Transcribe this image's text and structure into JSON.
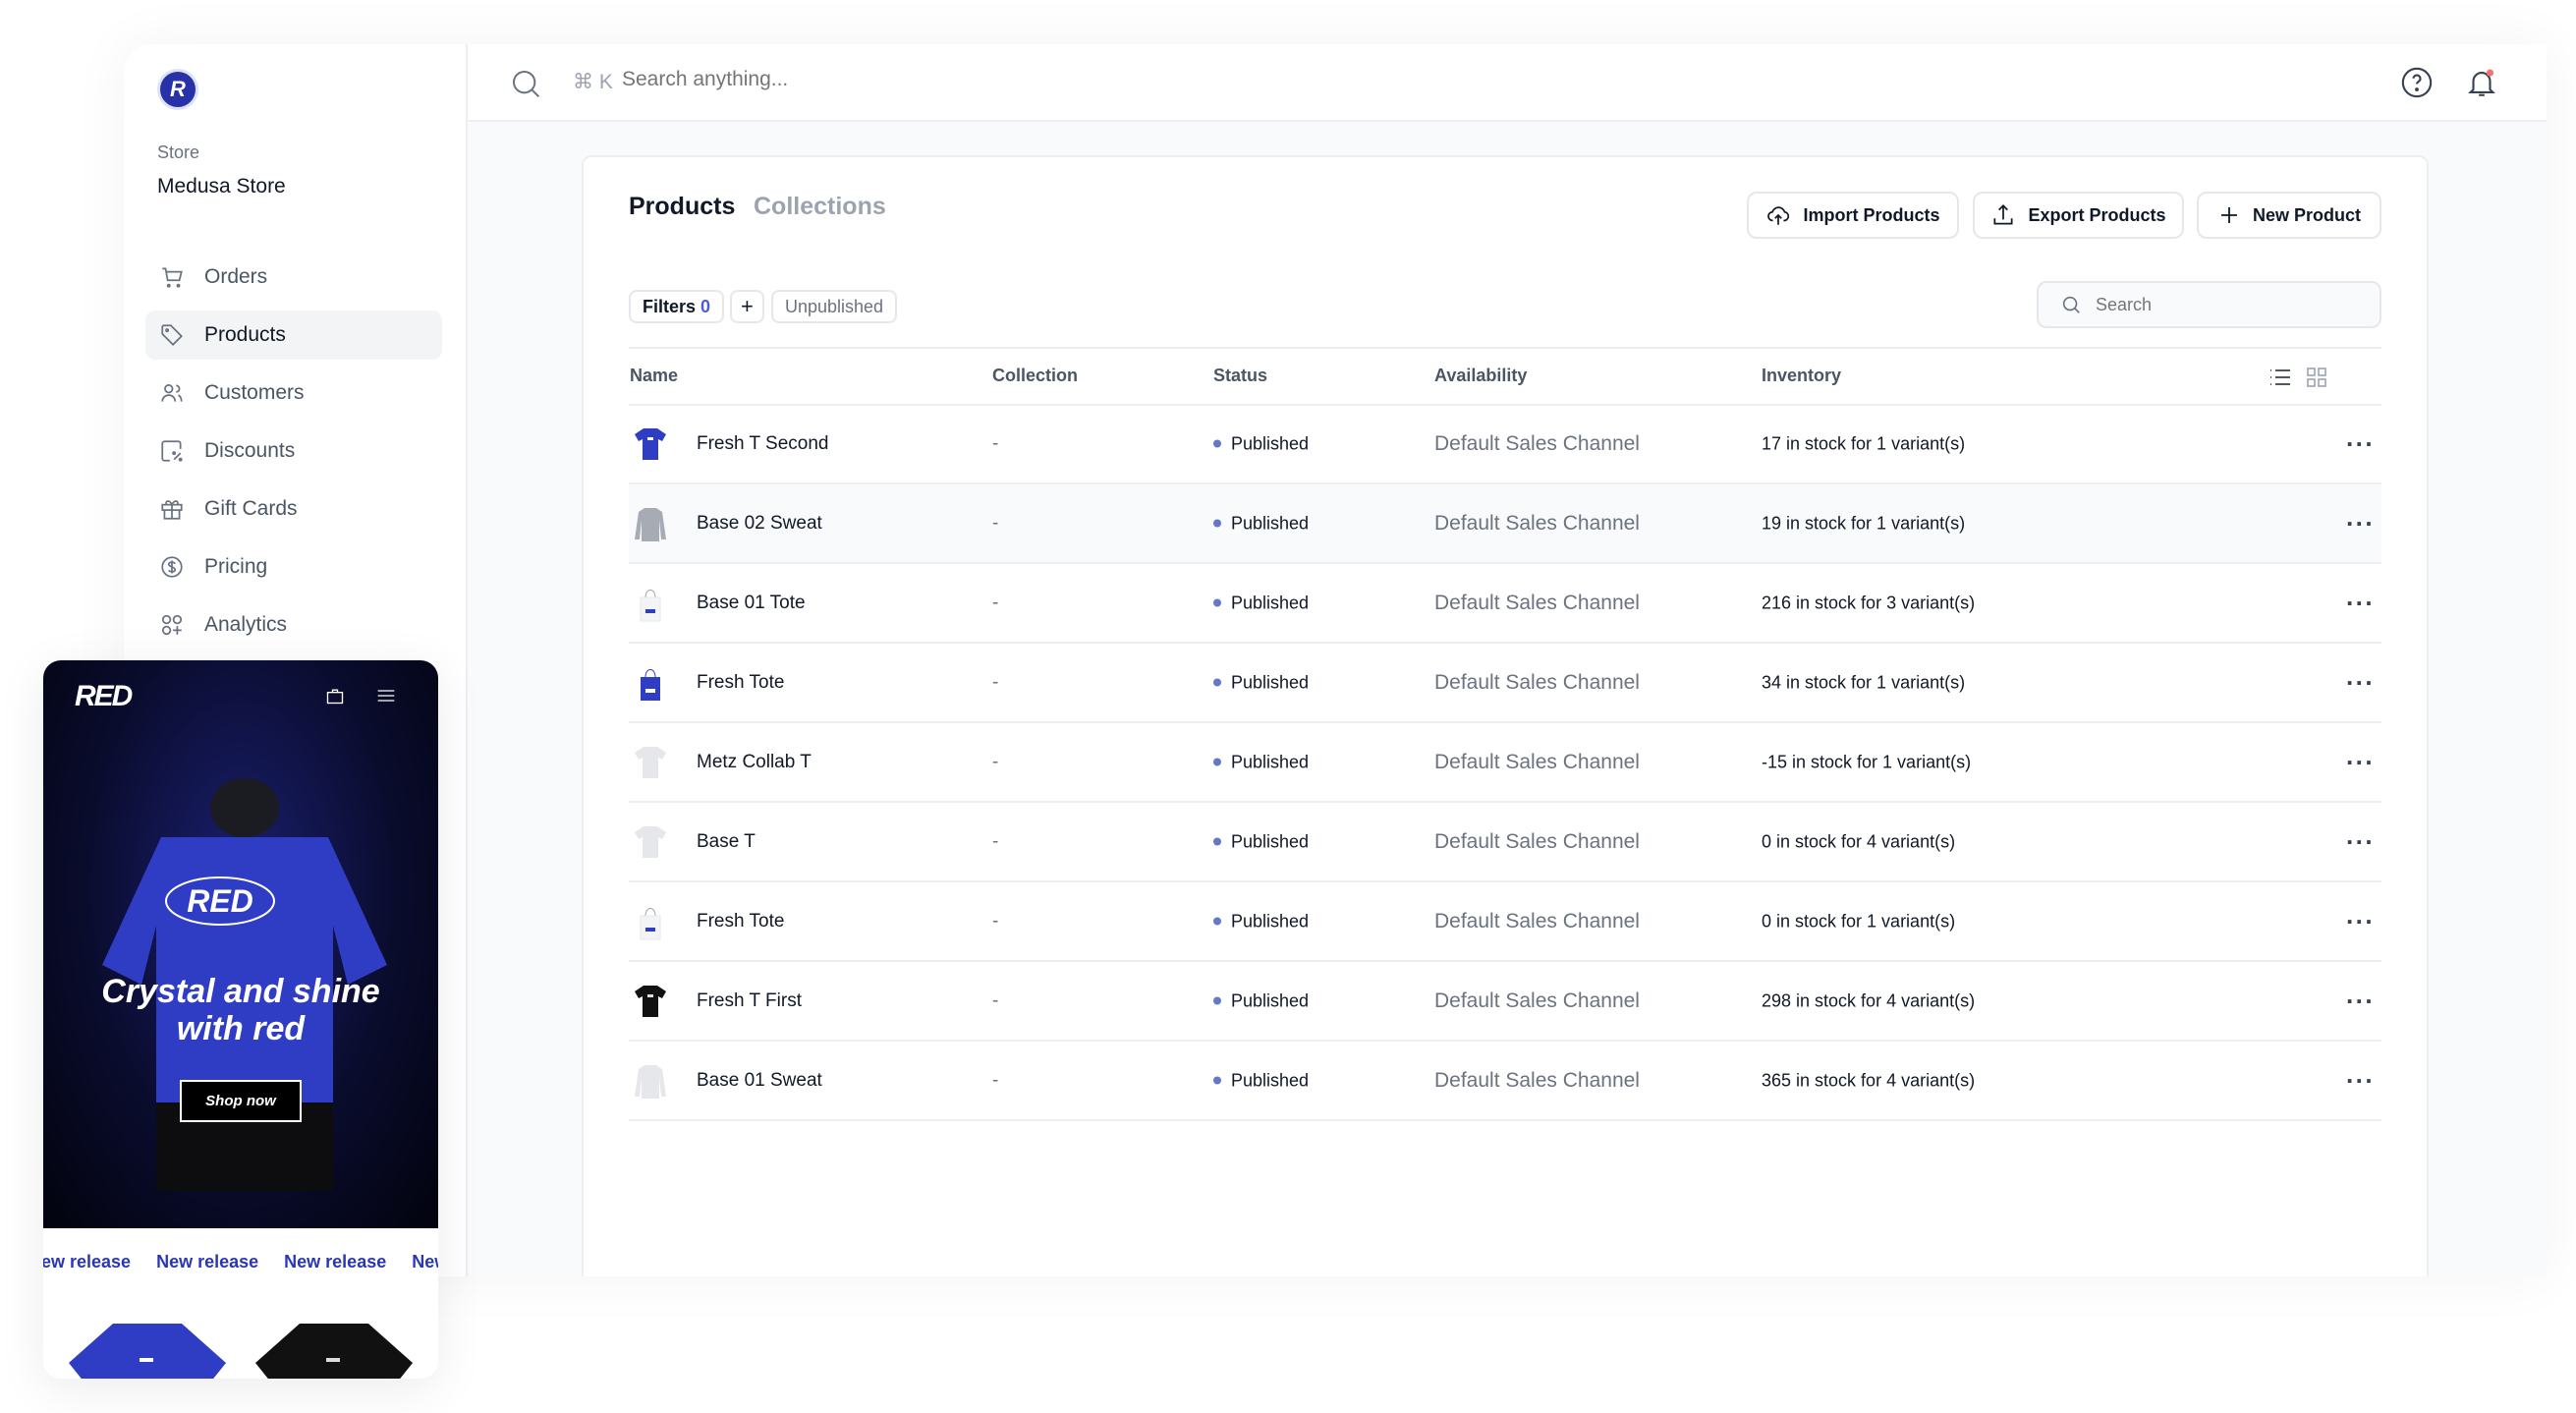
{
  "sidebar": {
    "logo_letter": "R",
    "store_label": "Store",
    "store_name": "Medusa Store",
    "items": [
      {
        "label": "Orders",
        "icon": "cart-icon"
      },
      {
        "label": "Products",
        "icon": "tag-icon",
        "active": true
      },
      {
        "label": "Customers",
        "icon": "users-icon"
      },
      {
        "label": "Discounts",
        "icon": "discount-icon"
      },
      {
        "label": "Gift Cards",
        "icon": "gift-icon"
      },
      {
        "label": "Pricing",
        "icon": "dollar-icon"
      },
      {
        "label": "Analytics",
        "icon": "analytics-icon"
      }
    ]
  },
  "topbar": {
    "shortcut": "⌘ K",
    "search_placeholder": "Search anything..."
  },
  "main": {
    "tabs": [
      "Products",
      "Collections"
    ],
    "buttons": {
      "import": "Import Products",
      "export": "Export Products",
      "new": "New Product"
    },
    "filters": {
      "label": "Filters",
      "count": "0",
      "add": "+",
      "chip": "Unpublished"
    },
    "search_placeholder": "Search",
    "columns": [
      "Name",
      "Collection",
      "Status",
      "Availability",
      "Inventory"
    ],
    "rows": [
      {
        "name": "Fresh T Second",
        "collection": "-",
        "status": "Published",
        "availability": "Default Sales Channel",
        "inventory": "17 in stock for 1 variant(s)",
        "thumb": "tee-blue"
      },
      {
        "name": "Base 02 Sweat",
        "collection": "-",
        "status": "Published",
        "availability": "Default Sales Channel",
        "inventory": "19 in stock for 1 variant(s)",
        "thumb": "sweat-grey"
      },
      {
        "name": "Base 01 Tote",
        "collection": "-",
        "status": "Published",
        "availability": "Default Sales Channel",
        "inventory": "216 in stock for 3 variant(s)",
        "thumb": "tote-white"
      },
      {
        "name": "Fresh Tote",
        "collection": "-",
        "status": "Published",
        "availability": "Default Sales Channel",
        "inventory": "34 in stock for 1 variant(s)",
        "thumb": "tote-blue"
      },
      {
        "name": "Metz Collab T",
        "collection": "-",
        "status": "Published",
        "availability": "Default Sales Channel",
        "inventory": "-15 in stock for 1 variant(s)",
        "thumb": "tee-light"
      },
      {
        "name": "Base T",
        "collection": "-",
        "status": "Published",
        "availability": "Default Sales Channel",
        "inventory": "0 in stock for 4 variant(s)",
        "thumb": "tee-light"
      },
      {
        "name": "Fresh Tote",
        "collection": "-",
        "status": "Published",
        "availability": "Default Sales Channel",
        "inventory": "0 in stock for 1 variant(s)",
        "thumb": "tote-white"
      },
      {
        "name": "Fresh T First",
        "collection": "-",
        "status": "Published",
        "availability": "Default Sales Channel",
        "inventory": "298 in stock for 4 variant(s)",
        "thumb": "tee-black"
      },
      {
        "name": "Base 01 Sweat",
        "collection": "-",
        "status": "Published",
        "availability": "Default Sales Channel",
        "inventory": "365 in stock for 4 variant(s)",
        "thumb": "sweat-light"
      }
    ]
  },
  "storefront": {
    "logo": "RED",
    "hero_title_1": "Crystal and shine",
    "hero_title_2": "with red",
    "cta": "Shop now",
    "marquee": [
      "ew release",
      "New release",
      "New release",
      "New"
    ]
  },
  "colors": {
    "accent": "#2832a8",
    "status_dot": "#6577c6",
    "hero_shirt": "#2f3cc4"
  }
}
